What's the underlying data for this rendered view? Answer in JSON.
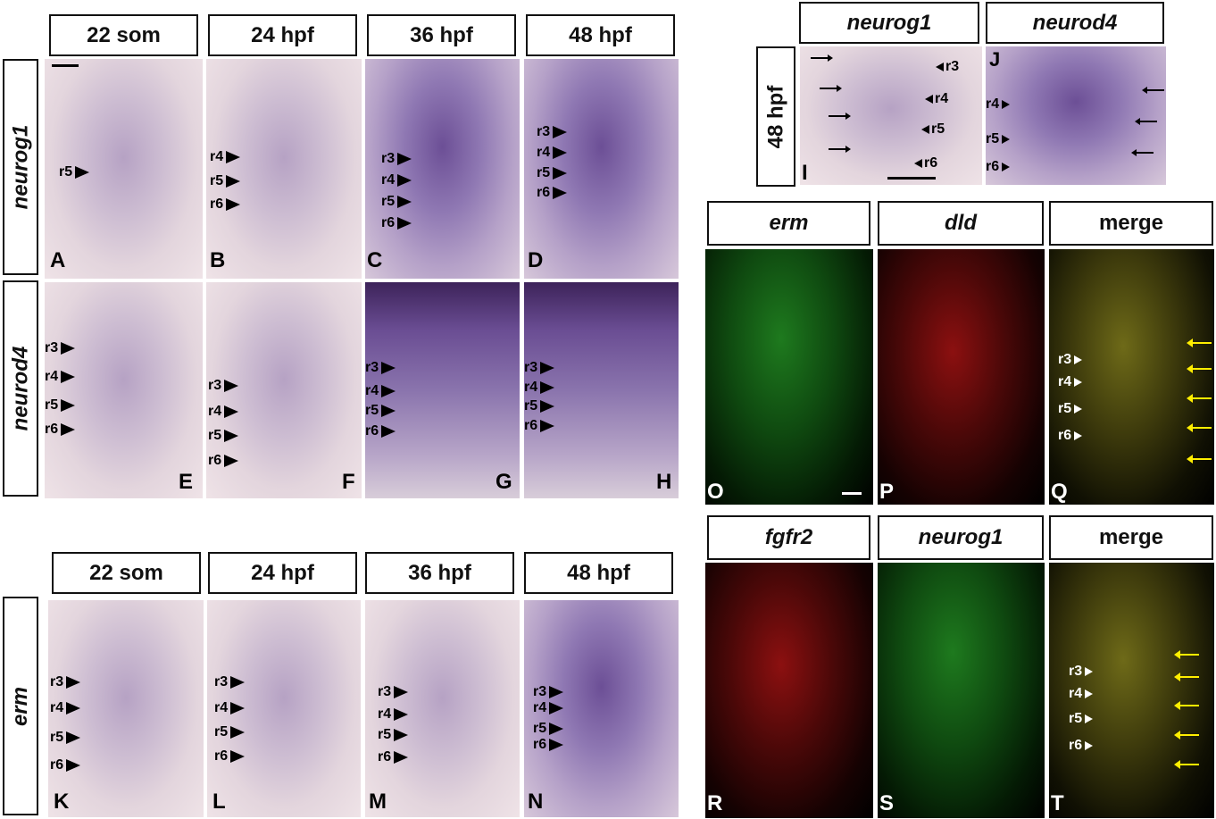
{
  "header_top": [
    "22 som",
    "24 hpf",
    "36 hpf",
    "48 hpf"
  ],
  "header_bottom": [
    "22 som",
    "24 hpf",
    "36 hpf",
    "48 hpf"
  ],
  "row_labels": {
    "neurog1": "neurog1",
    "neurod4": "neurod4",
    "erm": "erm",
    "hpf48": "48 hpf"
  },
  "header_IJ": [
    "neurog1",
    "neurod4"
  ],
  "header_OPQ": [
    "erm",
    "dld",
    "merge"
  ],
  "header_RST": [
    "fgfr2",
    "neurog1",
    "merge"
  ],
  "letters": [
    "A",
    "B",
    "C",
    "D",
    "E",
    "F",
    "G",
    "H",
    "I",
    "J",
    "K",
    "L",
    "M",
    "N",
    "O",
    "P",
    "Q",
    "R",
    "S",
    "T"
  ],
  "r": {
    "r3": "r3",
    "r4": "r4",
    "r5": "r5",
    "r6": "r6"
  },
  "colors": {
    "ish": "#b6a2c4",
    "green": "#1e7a1e",
    "red": "#8c1010",
    "arrow": "#ffee00"
  }
}
